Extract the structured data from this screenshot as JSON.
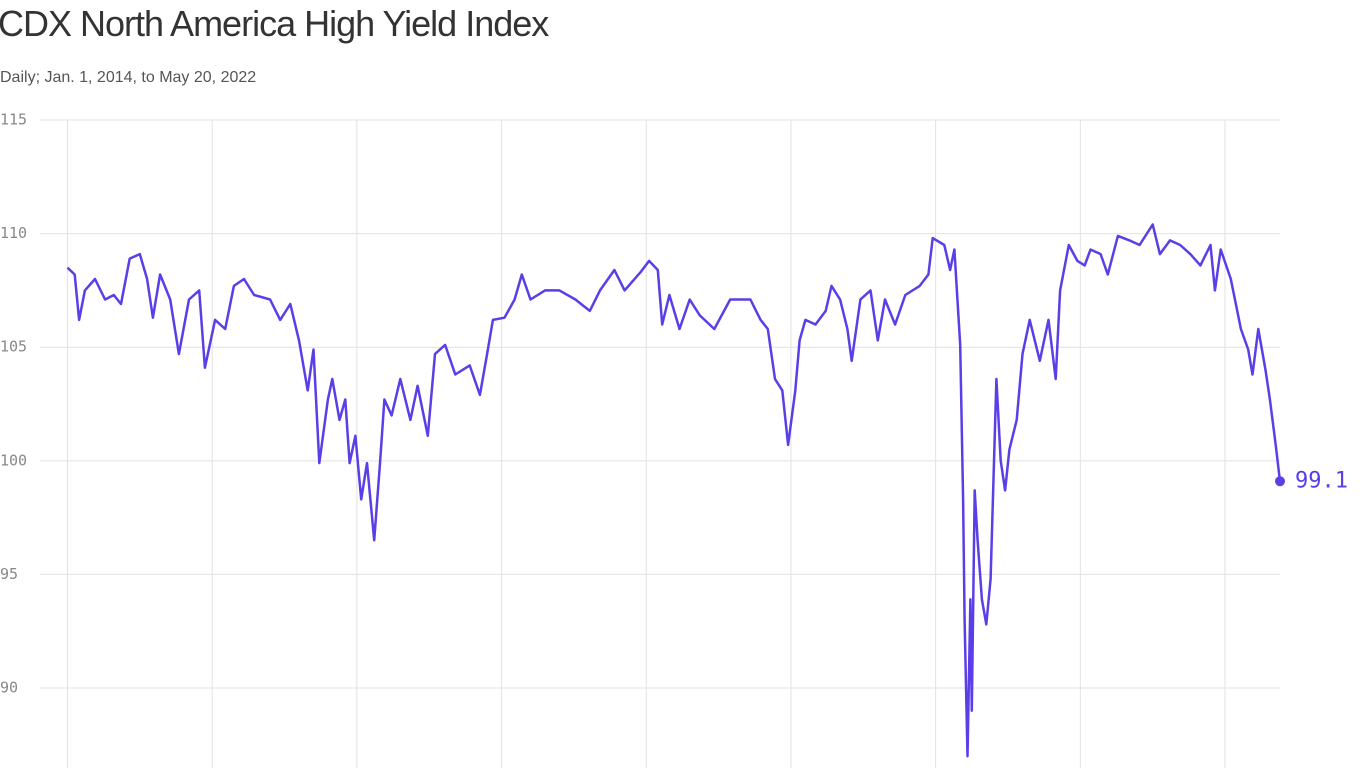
{
  "chart_data": {
    "type": "line",
    "title": "CDX North America High Yield Index",
    "subtitle": "Daily; Jan. 1, 2014, to May 20, 2022",
    "x": [
      2014.0,
      2014.05,
      2014.08,
      2014.12,
      2014.19,
      2014.26,
      2014.32,
      2014.37,
      2014.43,
      2014.5,
      2014.55,
      2014.59,
      2014.64,
      2014.71,
      2014.77,
      2014.84,
      2014.91,
      2014.95,
      2015.02,
      2015.09,
      2015.15,
      2015.22,
      2015.29,
      2015.4,
      2015.47,
      2015.54,
      2015.6,
      2015.66,
      2015.7,
      2015.74,
      2015.8,
      2015.83,
      2015.88,
      2015.92,
      2015.95,
      2015.99,
      2016.03,
      2016.07,
      2016.12,
      2016.16,
      2016.19,
      2016.24,
      2016.3,
      2016.37,
      2016.42,
      2016.49,
      2016.54,
      2016.61,
      2016.68,
      2016.78,
      2016.85,
      2016.9,
      2016.94,
      2017.02,
      2017.09,
      2017.14,
      2017.2,
      2017.3,
      2017.4,
      2017.51,
      2017.61,
      2017.68,
      2017.78,
      2017.85,
      2017.96,
      2018.02,
      2018.08,
      2018.11,
      2018.16,
      2018.23,
      2018.3,
      2018.37,
      2018.47,
      2018.58,
      2018.72,
      2018.79,
      2018.84,
      2018.89,
      2018.94,
      2018.98,
      2019.03,
      2019.06,
      2019.1,
      2019.17,
      2019.24,
      2019.28,
      2019.34,
      2019.39,
      2019.42,
      2019.48,
      2019.55,
      2019.6,
      2019.65,
      2019.72,
      2019.79,
      2019.89,
      2019.95,
      2019.98,
      2020.06,
      2020.1,
      2020.13,
      2020.17,
      2020.19,
      2020.2,
      2020.22,
      2020.24,
      2020.25,
      2020.27,
      2020.29,
      2020.32,
      2020.35,
      2020.38,
      2020.4,
      2020.42,
      2020.45,
      2020.48,
      2020.51,
      2020.56,
      2020.6,
      2020.65,
      2020.72,
      2020.78,
      2020.83,
      2020.86,
      2020.92,
      2020.98,
      2021.03,
      2021.07,
      2021.14,
      2021.19,
      2021.26,
      2021.34,
      2021.41,
      2021.5,
      2021.55,
      2021.62,
      2021.69,
      2021.76,
      2021.83,
      2021.9,
      2021.93,
      2021.97,
      2022.04,
      2022.11,
      2022.16,
      2022.19,
      2022.23,
      2022.28,
      2022.31,
      2022.35,
      2022.38
    ],
    "series": [
      {
        "name": "CDX North America High Yield Index",
        "color": "#5b3ee8",
        "values": [
          108.5,
          108.2,
          106.2,
          107.5,
          108.0,
          107.1,
          107.3,
          106.9,
          108.9,
          109.1,
          108.0,
          106.3,
          108.2,
          107.1,
          104.7,
          107.1,
          107.5,
          104.1,
          106.2,
          105.8,
          107.7,
          108.0,
          107.3,
          107.1,
          106.2,
          106.9,
          105.3,
          103.1,
          104.9,
          99.9,
          102.7,
          103.6,
          101.8,
          102.7,
          99.9,
          101.1,
          98.3,
          99.9,
          96.5,
          99.9,
          102.7,
          102.0,
          103.6,
          101.8,
          103.3,
          101.1,
          104.7,
          105.1,
          103.8,
          104.2,
          102.9,
          104.7,
          106.2,
          106.3,
          107.1,
          108.2,
          107.1,
          107.5,
          107.5,
          107.1,
          106.6,
          107.5,
          108.4,
          107.5,
          108.3,
          108.8,
          108.4,
          106.0,
          107.3,
          105.8,
          107.1,
          106.4,
          105.8,
          107.1,
          107.1,
          106.2,
          105.8,
          103.6,
          103.1,
          100.7,
          103.1,
          105.3,
          106.2,
          106.0,
          106.6,
          107.7,
          107.1,
          105.8,
          104.4,
          107.1,
          107.5,
          105.3,
          107.1,
          106.0,
          107.3,
          107.7,
          108.2,
          109.8,
          109.5,
          108.4,
          109.3,
          105.1,
          98.3,
          93.0,
          87.0,
          93.9,
          89.0,
          98.7,
          96.5,
          93.9,
          92.8,
          94.8,
          99.2,
          103.6,
          100.0,
          98.7,
          100.5,
          101.8,
          104.7,
          106.2,
          104.4,
          106.2,
          103.6,
          107.5,
          109.5,
          108.8,
          108.6,
          109.3,
          109.1,
          108.2,
          109.9,
          109.7,
          109.5,
          110.4,
          109.1,
          109.7,
          109.5,
          109.1,
          108.6,
          109.5,
          107.5,
          109.3,
          108.0,
          105.8,
          104.9,
          103.8,
          105.8,
          104.0,
          102.7,
          100.7,
          99.1
        ]
      }
    ],
    "xlim": [
      2013.81,
      2022.38
    ],
    "xticks": [
      2014,
      2015,
      2016,
      2017,
      2018,
      2019,
      2020,
      2021,
      2022
    ],
    "ylim": [
      86.48,
      115
    ],
    "yticks": [
      90,
      95,
      100,
      105,
      110,
      115
    ],
    "grid": true
  }
}
